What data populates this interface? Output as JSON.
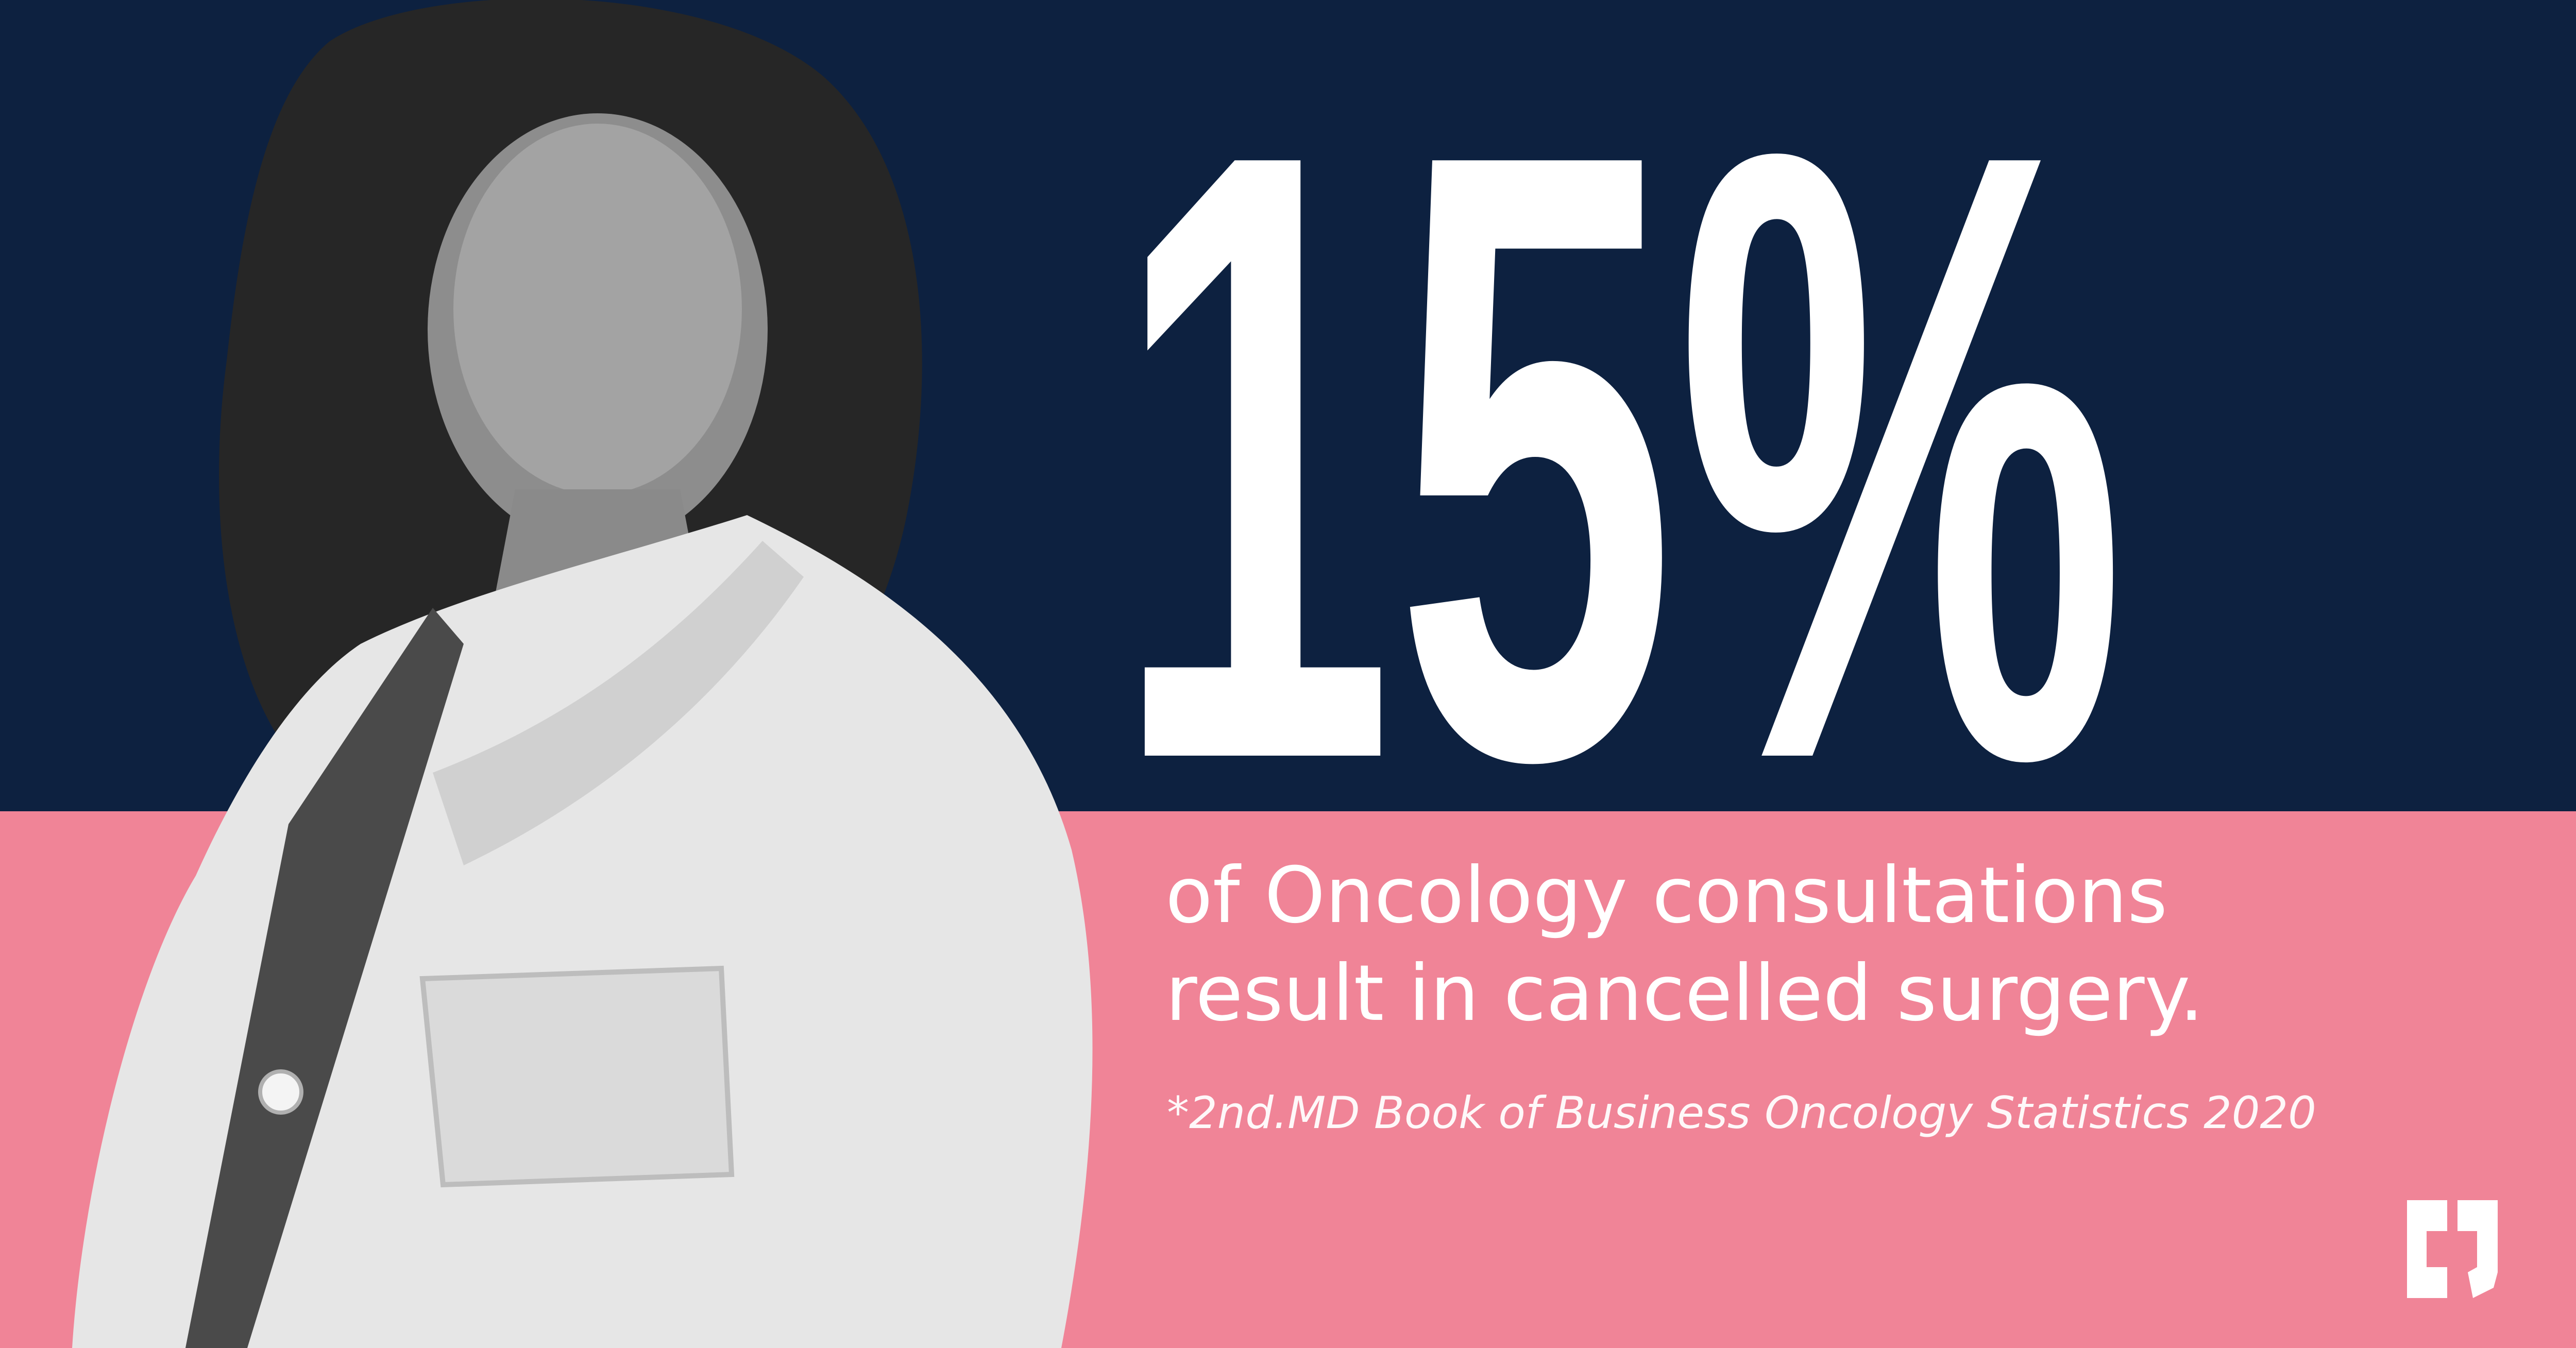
{
  "stat": "15%",
  "caption": [
    "of Oncology consultations",
    "result in cancelled surgery."
  ],
  "source": "*2nd.MD Book of Business Oncology Statistics 2020"
}
